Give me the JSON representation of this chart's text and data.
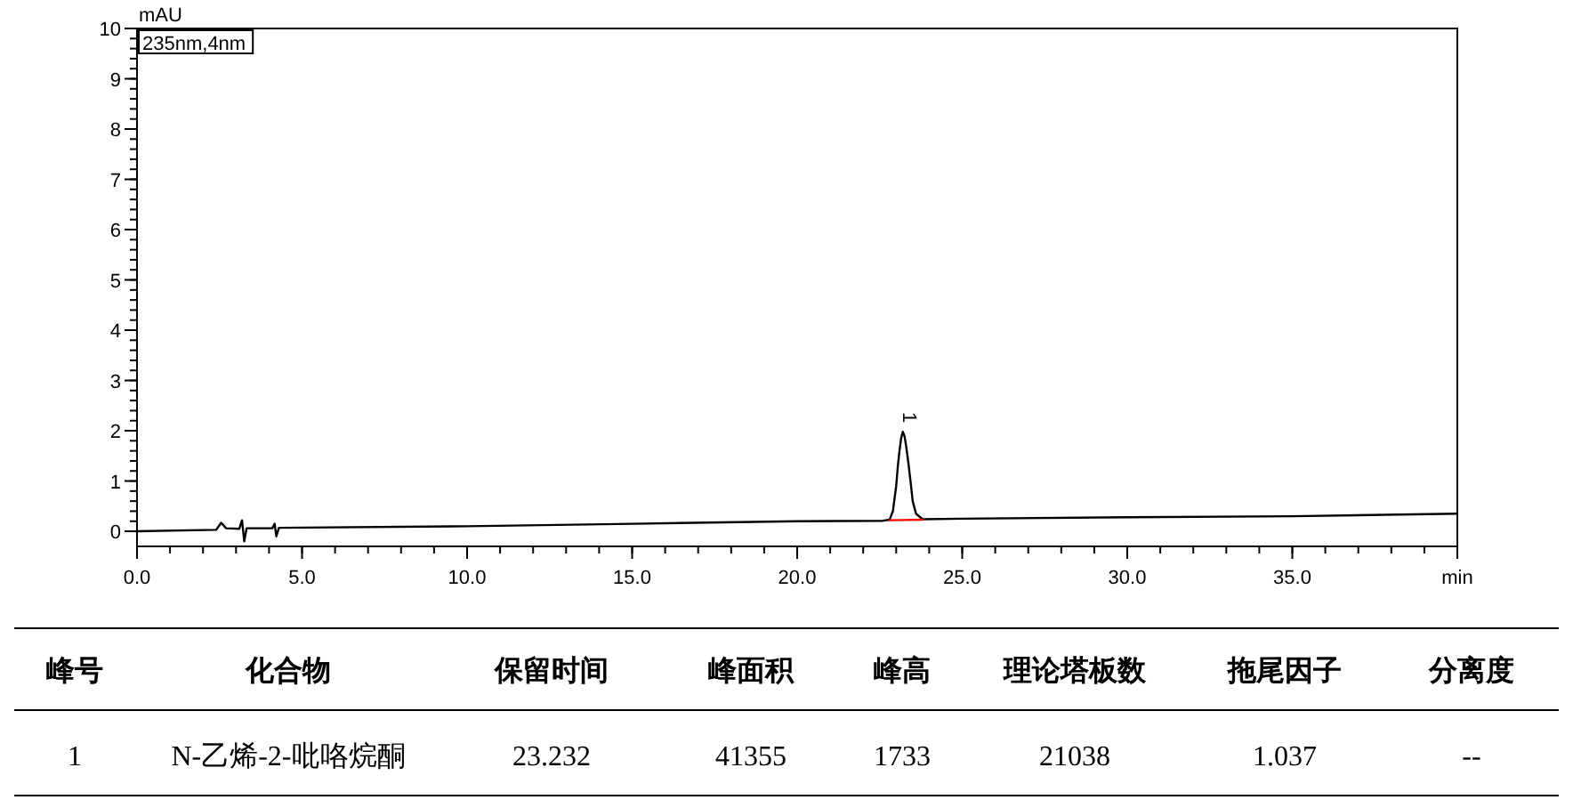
{
  "chart_data": {
    "type": "line",
    "ylabel": "mAU",
    "legend": "top left",
    "xlim": [
      0,
      40
    ],
    "xticks": [
      {
        "value": 0,
        "label": "0.0"
      },
      {
        "value": 5,
        "label": "5.0"
      },
      {
        "value": 10,
        "label": "10.0"
      },
      {
        "value": 15,
        "label": "15.0"
      },
      {
        "value": 20,
        "label": "20.0"
      },
      {
        "value": 25,
        "label": "25.0"
      },
      {
        "value": 30,
        "label": "30.0"
      },
      {
        "value": 35,
        "label": "35.0"
      },
      {
        "value": 40,
        "label": "min"
      }
    ],
    "ylim": [
      -0.3,
      10
    ],
    "yticks": [
      0,
      1,
      2,
      3,
      4,
      5,
      6,
      7,
      8,
      9,
      10
    ],
    "series": [
      {
        "name": "235nm,4nm",
        "color": "#000000",
        "x": [
          0,
          2.4,
          2.55,
          2.7,
          3.1,
          3.18,
          3.25,
          3.32,
          4.1,
          4.17,
          4.22,
          4.3,
          10,
          15,
          20,
          22.6,
          22.8,
          22.9,
          23.0,
          23.05,
          23.1,
          23.15,
          23.2,
          23.25,
          23.3,
          23.38,
          23.45,
          23.5,
          23.6,
          23.8,
          25,
          30,
          35,
          40
        ],
        "values": [
          0.0,
          0.03,
          0.17,
          0.06,
          0.05,
          0.22,
          -0.2,
          0.06,
          0.06,
          0.15,
          -0.1,
          0.07,
          0.1,
          0.15,
          0.2,
          0.21,
          0.23,
          0.4,
          0.9,
          1.3,
          1.6,
          1.85,
          1.98,
          1.9,
          1.7,
          1.3,
          0.9,
          0.6,
          0.35,
          0.24,
          0.25,
          0.28,
          0.3,
          0.35
        ]
      },
      {
        "color": "#ff0000",
        "x": [
          22.8,
          23.8
        ],
        "values": [
          0.22,
          0.23
        ]
      }
    ],
    "annotations": [
      {
        "text": "1",
        "x": 23.2,
        "y": 1.98
      },
      "峰号",
      "化合物",
      "保留时间",
      "峰面积",
      "峰高",
      "理论塔板数",
      "拖尾因子",
      "分离度",
      "1",
      "N-乙烯-2-吡咯烷酮",
      "23.232",
      "41355",
      "1733",
      "21038",
      "1.037",
      "--"
    ]
  }
}
